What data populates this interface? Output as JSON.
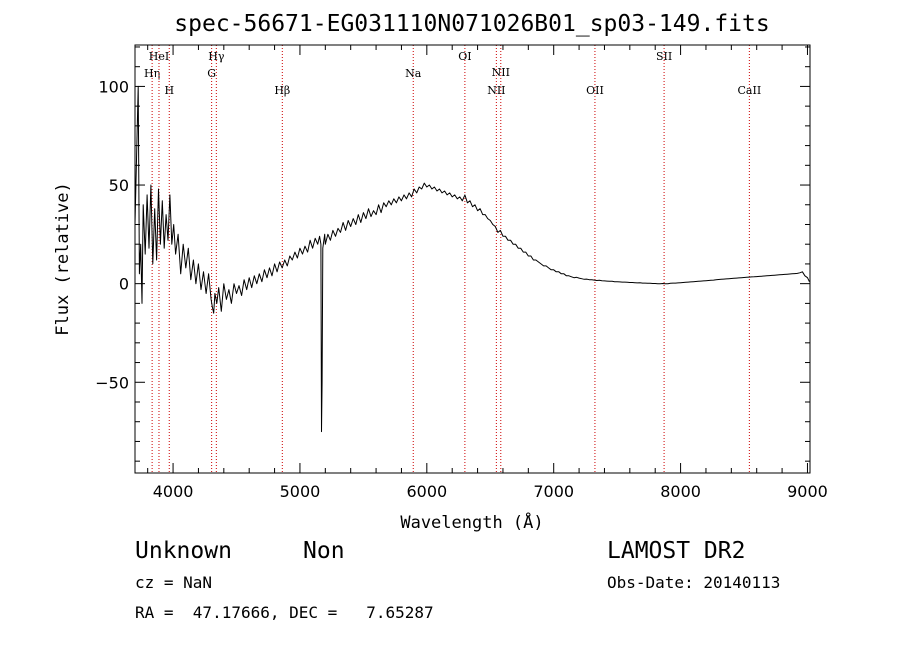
{
  "chart_data": {
    "type": "line",
    "title": "spec-56671-EG031110N071026B01_sp03-149.fits",
    "xlabel": "Wavelength (Å)",
    "ylabel": "Flux (relative)",
    "xlim": [
      3700,
      9020
    ],
    "ylim": [
      -96,
      121
    ],
    "x_ticks": [
      4000,
      5000,
      6000,
      7000,
      8000,
      9000
    ],
    "y_ticks": [
      -50,
      0,
      50,
      100
    ],
    "x_tick_labels": [
      "4000",
      "5000",
      "6000",
      "7000",
      "8000",
      "9000"
    ],
    "y_tick_labels": [
      "−50",
      "0",
      "50",
      "100"
    ],
    "grid": false,
    "series": [
      {
        "points": [
          [
            3700,
            30
          ],
          [
            3725,
            100
          ],
          [
            3735,
            5
          ],
          [
            3745,
            20
          ],
          [
            3755,
            -10
          ],
          [
            3765,
            40
          ],
          [
            3780,
            15
          ],
          [
            3795,
            45
          ],
          [
            3810,
            18
          ],
          [
            3825,
            50
          ],
          [
            3840,
            10
          ],
          [
            3855,
            38
          ],
          [
            3870,
            12
          ],
          [
            3885,
            48
          ],
          [
            3900,
            20
          ],
          [
            3915,
            42
          ],
          [
            3930,
            18
          ],
          [
            3945,
            35
          ],
          [
            3960,
            22
          ],
          [
            3975,
            45
          ],
          [
            3990,
            20
          ],
          [
            4005,
            30
          ],
          [
            4020,
            15
          ],
          [
            4040,
            25
          ],
          [
            4060,
            5
          ],
          [
            4080,
            20
          ],
          [
            4100,
            8
          ],
          [
            4120,
            18
          ],
          [
            4140,
            2
          ],
          [
            4160,
            12
          ],
          [
            4180,
            0
          ],
          [
            4200,
            10
          ],
          [
            4220,
            -3
          ],
          [
            4240,
            6
          ],
          [
            4260,
            -5
          ],
          [
            4280,
            5
          ],
          [
            4300,
            -8
          ],
          [
            4310,
            -12
          ],
          [
            4320,
            -15
          ],
          [
            4330,
            -5
          ],
          [
            4345,
            -10
          ],
          [
            4360,
            -2
          ],
          [
            4380,
            -14
          ],
          [
            4400,
            0
          ],
          [
            4420,
            -8
          ],
          [
            4440,
            -3
          ],
          [
            4460,
            -10
          ],
          [
            4480,
            0
          ],
          [
            4500,
            -5
          ],
          [
            4520,
            -1
          ],
          [
            4540,
            -6
          ],
          [
            4560,
            2
          ],
          [
            4580,
            -3
          ],
          [
            4600,
            3
          ],
          [
            4620,
            -2
          ],
          [
            4640,
            4
          ],
          [
            4660,
            0
          ],
          [
            4680,
            5
          ],
          [
            4700,
            1
          ],
          [
            4720,
            7
          ],
          [
            4740,
            3
          ],
          [
            4760,
            8
          ],
          [
            4780,
            4
          ],
          [
            4800,
            10
          ],
          [
            4820,
            6
          ],
          [
            4840,
            11
          ],
          [
            4860,
            8
          ],
          [
            4880,
            12
          ],
          [
            4900,
            9
          ],
          [
            4920,
            14
          ],
          [
            4940,
            12
          ],
          [
            4960,
            16
          ],
          [
            4980,
            13
          ],
          [
            5000,
            18
          ],
          [
            5020,
            15
          ],
          [
            5040,
            19
          ],
          [
            5060,
            16
          ],
          [
            5080,
            22
          ],
          [
            5100,
            18
          ],
          [
            5120,
            23
          ],
          [
            5140,
            20
          ],
          [
            5155,
            24
          ],
          [
            5165,
            20
          ],
          [
            5170,
            -75
          ],
          [
            5175,
            -50
          ],
          [
            5180,
            18
          ],
          [
            5195,
            25
          ],
          [
            5200,
            20
          ],
          [
            5220,
            25
          ],
          [
            5240,
            22
          ],
          [
            5260,
            27
          ],
          [
            5280,
            24
          ],
          [
            5300,
            28
          ],
          [
            5320,
            26
          ],
          [
            5340,
            31
          ],
          [
            5360,
            27
          ],
          [
            5380,
            32
          ],
          [
            5400,
            29
          ],
          [
            5420,
            33
          ],
          [
            5440,
            30
          ],
          [
            5460,
            35
          ],
          [
            5480,
            31
          ],
          [
            5500,
            36
          ],
          [
            5520,
            33
          ],
          [
            5540,
            38
          ],
          [
            5560,
            34
          ],
          [
            5580,
            37
          ],
          [
            5600,
            35
          ],
          [
            5620,
            40
          ],
          [
            5640,
            36
          ],
          [
            5660,
            41
          ],
          [
            5680,
            39
          ],
          [
            5700,
            42
          ],
          [
            5720,
            40
          ],
          [
            5740,
            43
          ],
          [
            5760,
            41
          ],
          [
            5780,
            44
          ],
          [
            5800,
            42
          ],
          [
            5820,
            45
          ],
          [
            5840,
            43
          ],
          [
            5860,
            46
          ],
          [
            5880,
            44
          ],
          [
            5900,
            48
          ],
          [
            5920,
            46
          ],
          [
            5940,
            49
          ],
          [
            5960,
            48
          ],
          [
            5980,
            51
          ],
          [
            6000,
            49
          ],
          [
            6020,
            50
          ],
          [
            6040,
            48
          ],
          [
            6060,
            49
          ],
          [
            6080,
            47
          ],
          [
            6100,
            48
          ],
          [
            6120,
            46
          ],
          [
            6140,
            47
          ],
          [
            6160,
            45
          ],
          [
            6180,
            46
          ],
          [
            6200,
            44
          ],
          [
            6220,
            45
          ],
          [
            6240,
            43
          ],
          [
            6260,
            44
          ],
          [
            6280,
            42
          ],
          [
            6300,
            45
          ],
          [
            6320,
            41
          ],
          [
            6340,
            42
          ],
          [
            6360,
            39
          ],
          [
            6380,
            40
          ],
          [
            6400,
            37
          ],
          [
            6420,
            38
          ],
          [
            6440,
            35
          ],
          [
            6460,
            35
          ],
          [
            6480,
            33
          ],
          [
            6500,
            32
          ],
          [
            6520,
            30
          ],
          [
            6540,
            29
          ],
          [
            6560,
            26
          ],
          [
            6580,
            27
          ],
          [
            6600,
            24
          ],
          [
            6620,
            24
          ],
          [
            6640,
            22
          ],
          [
            6660,
            22
          ],
          [
            6680,
            20
          ],
          [
            6700,
            20
          ],
          [
            6720,
            18
          ],
          [
            6740,
            18
          ],
          [
            6760,
            16
          ],
          [
            6780,
            16
          ],
          [
            6800,
            14
          ],
          [
            6820,
            14
          ],
          [
            6840,
            12
          ],
          [
            6860,
            12
          ],
          [
            6880,
            11
          ],
          [
            6900,
            10
          ],
          [
            6920,
            9
          ],
          [
            6940,
            9
          ],
          [
            6960,
            8
          ],
          [
            6980,
            7
          ],
          [
            7000,
            7
          ],
          [
            7020,
            6
          ],
          [
            7040,
            6
          ],
          [
            7060,
            5
          ],
          [
            7080,
            5
          ],
          [
            7100,
            4
          ],
          [
            7120,
            4
          ],
          [
            7140,
            3.5
          ],
          [
            7160,
            3
          ],
          [
            7180,
            3.2
          ],
          [
            7200,
            2.8
          ],
          [
            7220,
            2.5
          ],
          [
            7240,
            2.2
          ],
          [
            7260,
            2.3
          ],
          [
            7280,
            2
          ],
          [
            7300,
            2
          ],
          [
            7320,
            1.8
          ],
          [
            7340,
            1.6
          ],
          [
            7360,
            1.7
          ],
          [
            7380,
            1.5
          ],
          [
            7400,
            1.4
          ],
          [
            7420,
            1.3
          ],
          [
            7440,
            1.2
          ],
          [
            7460,
            1.2
          ],
          [
            7480,
            1
          ],
          [
            7500,
            1
          ],
          [
            7520,
            0.9
          ],
          [
            7540,
            0.8
          ],
          [
            7560,
            0.8
          ],
          [
            7580,
            0.7
          ],
          [
            7600,
            0.6
          ],
          [
            7620,
            0.6
          ],
          [
            7640,
            0.5
          ],
          [
            7660,
            0.4
          ],
          [
            7680,
            0.5
          ],
          [
            7700,
            0.3
          ],
          [
            7720,
            0.3
          ],
          [
            7740,
            0.2
          ],
          [
            7760,
            0.2
          ],
          [
            7780,
            0.1
          ],
          [
            7800,
            0.1
          ],
          [
            7820,
            0
          ],
          [
            7840,
            0
          ],
          [
            7860,
            0.1
          ],
          [
            7880,
            0
          ],
          [
            7900,
            0
          ],
          [
            7920,
            0.2
          ],
          [
            7940,
            0.3
          ],
          [
            7960,
            0.3
          ],
          [
            7980,
            0.4
          ],
          [
            8000,
            0.5
          ],
          [
            8020,
            0.6
          ],
          [
            8040,
            0.7
          ],
          [
            8060,
            0.8
          ],
          [
            8080,
            0.9
          ],
          [
            8100,
            1
          ],
          [
            8120,
            1.1
          ],
          [
            8140,
            1.2
          ],
          [
            8160,
            1.3
          ],
          [
            8180,
            1.4
          ],
          [
            8200,
            1.5
          ],
          [
            8220,
            1.6
          ],
          [
            8240,
            1.7
          ],
          [
            8260,
            1.8
          ],
          [
            8280,
            2
          ],
          [
            8300,
            2.1
          ],
          [
            8320,
            2.2
          ],
          [
            8340,
            2.3
          ],
          [
            8360,
            2.4
          ],
          [
            8380,
            2.5
          ],
          [
            8400,
            2.6
          ],
          [
            8420,
            2.7
          ],
          [
            8440,
            2.8
          ],
          [
            8460,
            2.9
          ],
          [
            8480,
            3
          ],
          [
            8500,
            3.1
          ],
          [
            8520,
            3.2
          ],
          [
            8540,
            3.3
          ],
          [
            8560,
            3.4
          ],
          [
            8580,
            3.5
          ],
          [
            8600,
            3.6
          ],
          [
            8620,
            3.7
          ],
          [
            8640,
            3.8
          ],
          [
            8660,
            3.9
          ],
          [
            8680,
            4
          ],
          [
            8700,
            4.1
          ],
          [
            8720,
            4.2
          ],
          [
            8740,
            4.3
          ],
          [
            8760,
            4.4
          ],
          [
            8780,
            4.5
          ],
          [
            8800,
            4.6
          ],
          [
            8820,
            4.7
          ],
          [
            8840,
            4.8
          ],
          [
            8860,
            4.9
          ],
          [
            8880,
            5
          ],
          [
            8900,
            5.1
          ],
          [
            8920,
            5.2
          ],
          [
            8940,
            5.5
          ],
          [
            8960,
            6
          ],
          [
            8980,
            4
          ],
          [
            9000,
            3
          ],
          [
            9015,
            1
          ]
        ]
      }
    ],
    "lines": [
      {
        "label": "Hη",
        "x": 3835,
        "row": 3
      },
      {
        "label": "HeI",
        "x": 3889,
        "row": 1
      },
      {
        "label": "H",
        "x": 3970,
        "row": 4
      },
      {
        "label": "Hγ",
        "x": 4341,
        "row": 1
      },
      {
        "label": "G",
        "x": 4304,
        "row": 3
      },
      {
        "label": "Hβ",
        "x": 4861,
        "row": 4
      },
      {
        "label": "Na",
        "x": 5893,
        "row": 3
      },
      {
        "label": "OI",
        "x": 6300,
        "row": 1
      },
      {
        "label": "NII",
        "x": 6548,
        "row": 4
      },
      {
        "label": "NII",
        "x": 6583,
        "row": 2
      },
      {
        "label": "OII",
        "x": 7325,
        "row": 4
      },
      {
        "label": "SII",
        "x": 7870,
        "row": 1
      },
      {
        "label": "CaII",
        "x": 8542,
        "row": 4
      }
    ],
    "line_color": "#cc0000"
  },
  "info": {
    "class_label": "Unknown",
    "subclass_label": "Non",
    "survey": "LAMOST DR2",
    "cz": "cz = NaN",
    "obs_date": "Obs-Date: 20140113",
    "coords": "RA =  47.17666, DEC =   7.65287"
  }
}
